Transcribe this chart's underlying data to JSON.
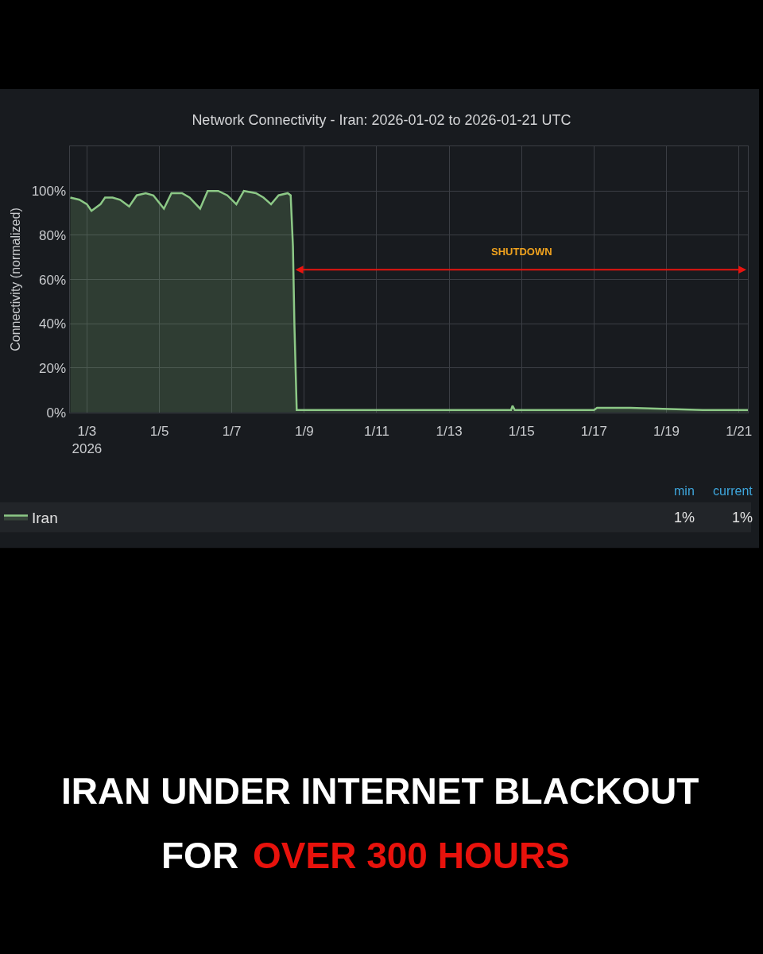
{
  "chart_data": {
    "type": "area",
    "title": "Network Connectivity - Iran: 2026-01-02 to 2026-01-21 UTC",
    "ylabel": "Connectivity (normalized)",
    "x": [
      "2026-01-02T13:00",
      "2026-01-02T19:00",
      "2026-01-03T00:00",
      "2026-01-03T03:00",
      "2026-01-03T09:00",
      "2026-01-03T12:00",
      "2026-01-03T17:00",
      "2026-01-03T22:00",
      "2026-01-04T04:00",
      "2026-01-04T09:00",
      "2026-01-04T15:00",
      "2026-01-04T20:00",
      "2026-01-05T03:00",
      "2026-01-05T08:00",
      "2026-01-05T15:00",
      "2026-01-05T20:00",
      "2026-01-06T03:00",
      "2026-01-06T08:00",
      "2026-01-06T15:00",
      "2026-01-06T21:00",
      "2026-01-07T03:00",
      "2026-01-07T08:00",
      "2026-01-07T16:00",
      "2026-01-07T21:00",
      "2026-01-08T02:00",
      "2026-01-08T07:00",
      "2026-01-08T13:00",
      "2026-01-08T15:00",
      "2026-01-08T16:30",
      "2026-01-08T17:30",
      "2026-01-08T19:00",
      "2026-01-09T00:00",
      "2026-01-10T12:00",
      "2026-01-14T17:00",
      "2026-01-14T18:00",
      "2026-01-14T19:30",
      "2026-01-17T00:00",
      "2026-01-17T02:00",
      "2026-01-18T00:00",
      "2026-01-20T00:00",
      "2026-01-21T06:00"
    ],
    "series": [
      {
        "name": "Iran",
        "color": "#8cc886",
        "values": [
          97,
          96,
          94,
          91,
          94,
          97,
          97,
          96,
          93,
          98,
          99,
          98,
          92,
          99,
          99,
          97,
          92,
          100,
          100,
          98,
          94,
          100,
          99,
          97,
          94,
          98,
          99,
          98,
          75,
          39,
          1,
          1,
          1,
          1,
          3,
          1,
          1,
          2,
          2,
          1,
          1
        ]
      }
    ],
    "xlim": [
      "2026-01-02T12:30",
      "2026-01-21T06:00"
    ],
    "xticks": [
      {
        "value": "2026-01-03",
        "label": "1/3\n2026"
      },
      {
        "value": "2026-01-05",
        "label": "1/5"
      },
      {
        "value": "2026-01-07",
        "label": "1/7"
      },
      {
        "value": "2026-01-09",
        "label": "1/9"
      },
      {
        "value": "2026-01-11",
        "label": "1/11"
      },
      {
        "value": "2026-01-13",
        "label": "1/13"
      },
      {
        "value": "2026-01-15",
        "label": "1/15"
      },
      {
        "value": "2026-01-17",
        "label": "1/17"
      },
      {
        "value": "2026-01-19",
        "label": "1/19"
      },
      {
        "value": "2026-01-21",
        "label": "1/21"
      }
    ],
    "ylim": [
      0,
      120
    ],
    "yticks": [
      {
        "value": 0,
        "label": "0%"
      },
      {
        "value": 20,
        "label": "20%"
      },
      {
        "value": 40,
        "label": "40%"
      },
      {
        "value": 60,
        "label": "60%"
      },
      {
        "value": 80,
        "label": "80%"
      },
      {
        "value": 100,
        "label": "100%"
      },
      {
        "value": 120,
        "label": null
      }
    ],
    "annotations": [
      "SHUTDOWN",
      "min",
      "current",
      "1%",
      "1%",
      "IRAN UNDER INTERNET BLACKOUT",
      "FOR",
      "OVER 300 HOURS"
    ],
    "grid": true,
    "legend": "bottom left",
    "marker": "none",
    "line_style": "solid"
  }
}
